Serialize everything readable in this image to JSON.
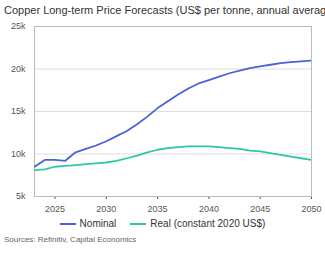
{
  "chart_data": {
    "type": "line",
    "title": "Copper Long-term Price Forecasts (US$ per tonne, annual average)",
    "caption": "Sources: Refinitiv, Capital Economics",
    "x": [
      2023,
      2024,
      2025,
      2026,
      2027,
      2028,
      2029,
      2030,
      2031,
      2032,
      2033,
      2034,
      2035,
      2036,
      2037,
      2038,
      2039,
      2040,
      2041,
      2042,
      2043,
      2044,
      2045,
      2046,
      2047,
      2048,
      2049,
      2050
    ],
    "series": [
      {
        "name": "Nominal",
        "color": "#4a62d8",
        "values": [
          8500,
          9300,
          9300,
          9200,
          10200,
          10600,
          11000,
          11500,
          12100,
          12700,
          13500,
          14400,
          15400,
          16200,
          17000,
          17700,
          18300,
          18700,
          19100,
          19500,
          19800,
          20100,
          20300,
          20500,
          20700,
          20800,
          20900,
          21000
        ]
      },
      {
        "name": "Real (constant 2020 US$)",
        "color": "#2fc7a6",
        "values": [
          8100,
          8200,
          8500,
          8600,
          8700,
          8800,
          8900,
          9000,
          9200,
          9500,
          9800,
          10200,
          10500,
          10700,
          10800,
          10900,
          10900,
          10900,
          10800,
          10700,
          10600,
          10400,
          10300,
          10100,
          9900,
          9700,
          9500,
          9300
        ]
      }
    ],
    "xlim": [
      2023,
      2050
    ],
    "xticks": [
      2025,
      2030,
      2035,
      2040,
      2045,
      2050
    ],
    "ylim": [
      5000,
      25000
    ],
    "yticks": [
      {
        "value": 5000,
        "label": "5k"
      },
      {
        "value": 10000,
        "label": "10k"
      },
      {
        "value": 15000,
        "label": "15k"
      },
      {
        "value": 20000,
        "label": "20k"
      },
      {
        "value": 25000,
        "label": "25k"
      }
    ],
    "grid": true,
    "legend": "bottom"
  }
}
